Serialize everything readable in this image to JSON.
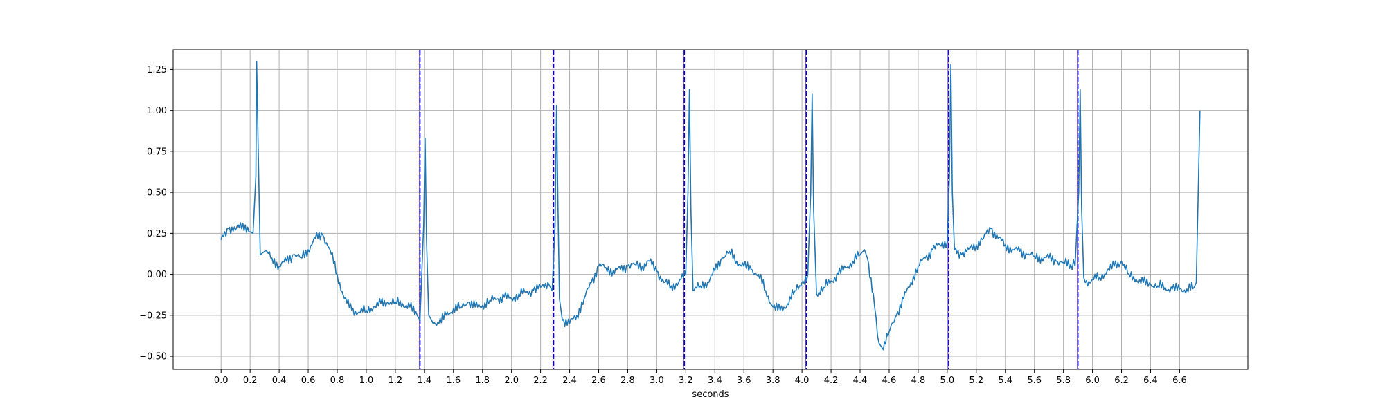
{
  "chart_data": {
    "type": "line",
    "title": "",
    "xlabel": "seconds",
    "ylabel": "",
    "xlim": [
      -0.33,
      7.07
    ],
    "ylim": [
      -0.58,
      1.37
    ],
    "grid": true,
    "legend": "none",
    "xticks": [
      0.0,
      0.2,
      0.4,
      0.6,
      0.8,
      1.0,
      1.2,
      1.4,
      1.6,
      1.8,
      2.0,
      2.2,
      2.4,
      2.6,
      2.8,
      3.0,
      3.2,
      3.4,
      3.6,
      3.8,
      4.0,
      4.2,
      4.4,
      4.6,
      4.8,
      5.0,
      5.2,
      5.4,
      5.6,
      5.8,
      6.0,
      6.2,
      6.4,
      6.6
    ],
    "xtick_labels": [
      "0.0",
      "0.2",
      "0.4",
      "0.6",
      "0.8",
      "1.0",
      "1.2",
      "1.4",
      "1.6",
      "1.8",
      "2.0",
      "2.2",
      "2.4",
      "2.6",
      "2.8",
      "3.0",
      "3.2",
      "3.4",
      "3.6",
      "3.8",
      "4.0",
      "4.2",
      "4.4",
      "4.6",
      "4.8",
      "5.0",
      "5.2",
      "5.4",
      "5.6",
      "5.8",
      "6.0",
      "6.2",
      "6.4",
      "6.6"
    ],
    "yticks": [
      -0.5,
      -0.25,
      0.0,
      0.25,
      0.5,
      0.75,
      1.0,
      1.25
    ],
    "ytick_labels": [
      "−0.50",
      "−0.25",
      "0.00",
      "0.25",
      "0.50",
      "0.75",
      "1.00",
      "1.25"
    ],
    "colors": {
      "signal": "#1f77b4",
      "marker_dark": "#0000cc",
      "marker_light": "#9467bd",
      "grid": "#b0b0b0"
    },
    "markers": [
      1.37,
      2.29,
      3.19,
      4.03,
      5.01,
      5.9
    ],
    "series": [
      {
        "points": [
          [
            0.0,
            0.21
          ],
          [
            0.05,
            0.28
          ],
          [
            0.1,
            0.27
          ],
          [
            0.15,
            0.31
          ],
          [
            0.2,
            0.26
          ],
          [
            0.22,
            0.25
          ],
          [
            0.24,
            0.6
          ],
          [
            0.245,
            1.3
          ],
          [
            0.255,
            0.8
          ],
          [
            0.27,
            0.12
          ],
          [
            0.3,
            0.14
          ],
          [
            0.35,
            0.1
          ],
          [
            0.4,
            0.05
          ],
          [
            0.45,
            0.08
          ],
          [
            0.5,
            0.12
          ],
          [
            0.55,
            0.1
          ],
          [
            0.6,
            0.15
          ],
          [
            0.65,
            0.22
          ],
          [
            0.7,
            0.24
          ],
          [
            0.75,
            0.15
          ],
          [
            0.8,
            0.0
          ],
          [
            0.85,
            -0.15
          ],
          [
            0.9,
            -0.22
          ],
          [
            0.95,
            -0.23
          ],
          [
            1.0,
            -0.22
          ],
          [
            1.05,
            -0.2
          ],
          [
            1.1,
            -0.18
          ],
          [
            1.15,
            -0.17
          ],
          [
            1.2,
            -0.17
          ],
          [
            1.25,
            -0.18
          ],
          [
            1.3,
            -0.2
          ],
          [
            1.35,
            -0.25
          ],
          [
            1.37,
            -0.28
          ],
          [
            1.395,
            0.3
          ],
          [
            1.405,
            0.83
          ],
          [
            1.415,
            0.2
          ],
          [
            1.43,
            -0.25
          ],
          [
            1.45,
            -0.28
          ],
          [
            1.5,
            -0.3
          ],
          [
            1.55,
            -0.25
          ],
          [
            1.6,
            -0.21
          ],
          [
            1.65,
            -0.2
          ],
          [
            1.7,
            -0.17
          ],
          [
            1.75,
            -0.2
          ],
          [
            1.8,
            -0.19
          ],
          [
            1.85,
            -0.16
          ],
          [
            1.9,
            -0.15
          ],
          [
            1.95,
            -0.14
          ],
          [
            2.0,
            -0.15
          ],
          [
            2.05,
            -0.12
          ],
          [
            2.1,
            -0.11
          ],
          [
            2.15,
            -0.1
          ],
          [
            2.2,
            -0.08
          ],
          [
            2.25,
            -0.05
          ],
          [
            2.28,
            -0.1
          ],
          [
            2.3,
            0.3
          ],
          [
            2.31,
            1.03
          ],
          [
            2.32,
            0.4
          ],
          [
            2.33,
            -0.15
          ],
          [
            2.35,
            -0.28
          ],
          [
            2.4,
            -0.3
          ],
          [
            2.45,
            -0.25
          ],
          [
            2.5,
            -0.15
          ],
          [
            2.55,
            -0.05
          ],
          [
            2.6,
            0.05
          ],
          [
            2.65,
            0.04
          ],
          [
            2.7,
            0.02
          ],
          [
            2.75,
            0.03
          ],
          [
            2.8,
            0.05
          ],
          [
            2.85,
            0.06
          ],
          [
            2.9,
            0.05
          ],
          [
            2.95,
            0.08
          ],
          [
            3.0,
            0.02
          ],
          [
            3.05,
            -0.05
          ],
          [
            3.1,
            -0.07
          ],
          [
            3.15,
            -0.05
          ],
          [
            3.2,
            0.0
          ],
          [
            3.215,
            0.5
          ],
          [
            3.225,
            1.13
          ],
          [
            3.235,
            0.4
          ],
          [
            3.25,
            -0.1
          ],
          [
            3.3,
            -0.07
          ],
          [
            3.35,
            -0.05
          ],
          [
            3.4,
            0.02
          ],
          [
            3.45,
            0.1
          ],
          [
            3.5,
            0.14
          ],
          [
            3.55,
            0.08
          ],
          [
            3.6,
            0.05
          ],
          [
            3.65,
            0.03
          ],
          [
            3.7,
            0.0
          ],
          [
            3.75,
            -0.1
          ],
          [
            3.8,
            -0.2
          ],
          [
            3.85,
            -0.22
          ],
          [
            3.9,
            -0.18
          ],
          [
            3.95,
            -0.1
          ],
          [
            4.0,
            -0.05
          ],
          [
            4.04,
            0.0
          ],
          [
            4.06,
            0.5
          ],
          [
            4.07,
            1.1
          ],
          [
            4.08,
            0.4
          ],
          [
            4.1,
            -0.12
          ],
          [
            4.15,
            -0.08
          ],
          [
            4.2,
            -0.04
          ],
          [
            4.25,
            0.0
          ],
          [
            4.3,
            0.04
          ],
          [
            4.35,
            0.08
          ],
          [
            4.4,
            0.12
          ],
          [
            4.43,
            0.15
          ],
          [
            4.45,
            0.1
          ],
          [
            4.5,
            -0.2
          ],
          [
            4.53,
            -0.42
          ],
          [
            4.56,
            -0.46
          ],
          [
            4.6,
            -0.35
          ],
          [
            4.65,
            -0.25
          ],
          [
            4.7,
            -0.15
          ],
          [
            4.75,
            -0.05
          ],
          [
            4.8,
            0.05
          ],
          [
            4.85,
            0.1
          ],
          [
            4.9,
            0.15
          ],
          [
            4.95,
            0.18
          ],
          [
            5.0,
            0.2
          ],
          [
            5.015,
            0.6
          ],
          [
            5.025,
            1.28
          ],
          [
            5.035,
            0.5
          ],
          [
            5.05,
            0.15
          ],
          [
            5.1,
            0.12
          ],
          [
            5.15,
            0.15
          ],
          [
            5.2,
            0.18
          ],
          [
            5.25,
            0.22
          ],
          [
            5.3,
            0.28
          ],
          [
            5.35,
            0.22
          ],
          [
            5.4,
            0.18
          ],
          [
            5.45,
            0.15
          ],
          [
            5.5,
            0.14
          ],
          [
            5.55,
            0.12
          ],
          [
            5.6,
            0.11
          ],
          [
            5.65,
            0.1
          ],
          [
            5.7,
            0.1
          ],
          [
            5.75,
            0.08
          ],
          [
            5.8,
            0.07
          ],
          [
            5.85,
            0.06
          ],
          [
            5.88,
            0.05
          ],
          [
            5.905,
            0.5
          ],
          [
            5.915,
            1.13
          ],
          [
            5.925,
            0.4
          ],
          [
            5.94,
            -0.02
          ],
          [
            5.95,
            -0.05
          ],
          [
            6.0,
            -0.03
          ],
          [
            6.05,
            -0.02
          ],
          [
            6.1,
            0.02
          ],
          [
            6.15,
            0.05
          ],
          [
            6.2,
            0.08
          ],
          [
            6.25,
            0.0
          ],
          [
            6.3,
            -0.03
          ],
          [
            6.35,
            -0.05
          ],
          [
            6.4,
            -0.06
          ],
          [
            6.45,
            -0.07
          ],
          [
            6.5,
            -0.08
          ],
          [
            6.55,
            -0.09
          ],
          [
            6.6,
            -0.09
          ],
          [
            6.65,
            -0.09
          ],
          [
            6.7,
            -0.08
          ],
          [
            6.715,
            -0.05
          ],
          [
            6.74,
            1.0
          ]
        ]
      }
    ]
  }
}
